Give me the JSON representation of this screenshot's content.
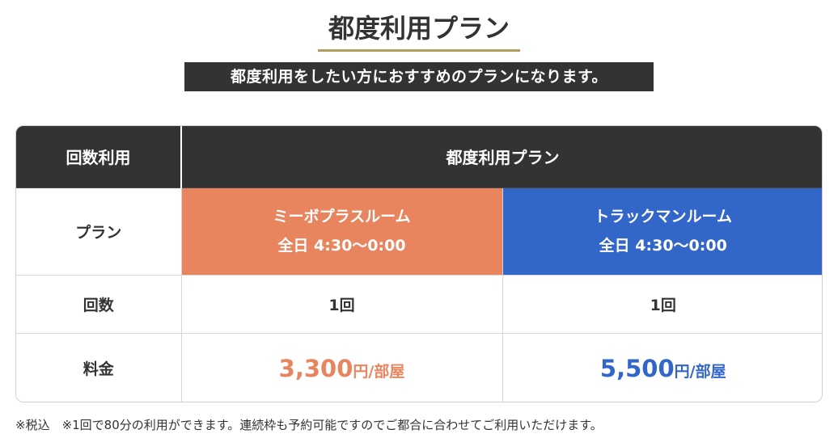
{
  "header": {
    "title": "都度利用プラン",
    "subtitle": "都度利用をしたい方におすすめのプランになります。"
  },
  "table": {
    "head": {
      "col1": "回数利用",
      "col2": "都度利用プラン"
    },
    "rows": {
      "plan_label": "プラン",
      "count_label": "回数",
      "price_label": "料金"
    },
    "plans": [
      {
        "name": "ミーボプラスルーム",
        "hours": "全日 4:30〜0:00",
        "count": "1回",
        "price": "3,300",
        "unit": "円",
        "per": "/部屋",
        "color": "#e8855f"
      },
      {
        "name": "トラックマンルーム",
        "hours": "全日 4:30〜0:00",
        "count": "1回",
        "price": "5,500",
        "unit": "円",
        "per": "/部屋",
        "color": "#3366c9"
      }
    ]
  },
  "footnote": "※税込　※1回で80分の利用ができます。連続枠も予約可能ですのでご都合に合わせてご利用いただけます。",
  "colors": {
    "header_bg": "#333333",
    "accent_gold": "#b39b5b"
  }
}
